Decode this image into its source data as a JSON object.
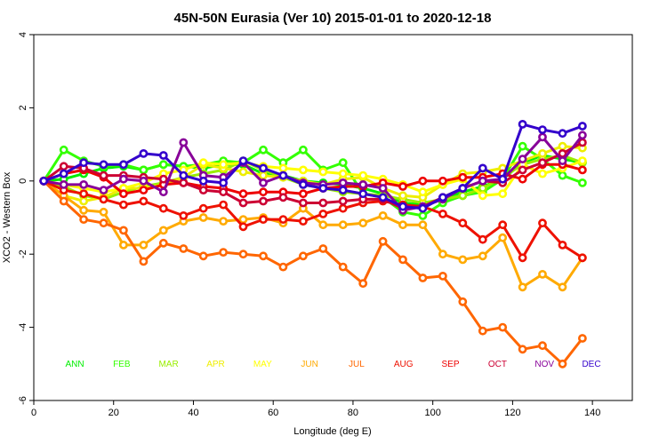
{
  "chart_data": {
    "type": "line",
    "title": "45N-50N Eurasia (Ver 10)   2015-01-01 to 2020-12-18",
    "xlabel": "Longitude (deg E)",
    "ylabel": "XCO2 - Western Box",
    "xlim": [
      0,
      150
    ],
    "ylim": [
      -6,
      4
    ],
    "xticks": [
      0,
      20,
      40,
      60,
      80,
      100,
      120,
      140
    ],
    "yticks": [
      -6,
      -4,
      -2,
      0,
      2,
      4
    ],
    "x": [
      2.5,
      7.5,
      12.5,
      17.5,
      22.5,
      27.5,
      32.5,
      37.5,
      42.5,
      47.5,
      52.5,
      57.5,
      62.5,
      67.5,
      72.5,
      77.5,
      82.5,
      87.5,
      92.5,
      97.5,
      102.5,
      107.5,
      112.5,
      117.5,
      122.5,
      127.5,
      132.5,
      137.5
    ],
    "series": [
      {
        "name": "ANN",
        "color": "#00ee00",
        "values": [
          0.0,
          0.05,
          0.2,
          0.35,
          0.4,
          0.3,
          0.45,
          0.4,
          0.35,
          0.45,
          0.45,
          0.2,
          0.15,
          0.0,
          -0.05,
          -0.1,
          -0.2,
          -0.35,
          -0.6,
          -0.65,
          -0.5,
          -0.3,
          -0.15,
          0.05,
          0.5,
          0.7,
          0.6,
          0.5
        ]
      },
      {
        "name": "FEB",
        "color": "#33ff00",
        "values": [
          0.0,
          0.85,
          0.55,
          0.4,
          0.45,
          0.3,
          0.45,
          0.4,
          0.45,
          0.55,
          0.5,
          0.85,
          0.5,
          0.85,
          0.3,
          0.5,
          -0.35,
          -0.45,
          -0.85,
          -0.95,
          -0.6,
          -0.4,
          -0.3,
          0.05,
          0.95,
          0.6,
          0.15,
          -0.05
        ]
      },
      {
        "name": "MAR",
        "color": "#99ee00",
        "values": [
          0.0,
          -0.15,
          -0.4,
          -0.5,
          -0.3,
          -0.15,
          -0.05,
          0.1,
          0.2,
          0.3,
          0.55,
          0.3,
          0.1,
          -0.1,
          -0.2,
          -0.3,
          -0.35,
          -0.4,
          -0.5,
          -0.6,
          -0.5,
          -0.4,
          -0.2,
          0.1,
          0.45,
          0.6,
          0.7,
          0.5
        ]
      },
      {
        "name": "APR",
        "color": "#eeee00",
        "values": [
          0.0,
          -0.4,
          -0.55,
          -0.45,
          -0.2,
          -0.2,
          -0.1,
          0.1,
          0.45,
          0.35,
          0.25,
          0.15,
          0.1,
          0.0,
          -0.1,
          0.05,
          0.1,
          -0.2,
          -0.4,
          -0.45,
          -0.1,
          0.2,
          0.25,
          0.35,
          0.55,
          0.75,
          0.95,
          0.9
        ]
      },
      {
        "name": "MAY",
        "color": "#ffff00",
        "values": [
          0.0,
          -0.1,
          -0.2,
          -0.3,
          -0.2,
          -0.05,
          0.2,
          0.3,
          0.5,
          0.45,
          0.5,
          0.4,
          0.35,
          0.3,
          0.25,
          0.2,
          0.15,
          0.05,
          -0.1,
          -0.3,
          -0.1,
          0.05,
          -0.4,
          -0.35,
          0.45,
          0.2,
          0.35,
          0.55
        ]
      },
      {
        "name": "JUN",
        "color": "#ffaa00",
        "values": [
          0.0,
          -0.4,
          -0.8,
          -0.85,
          -1.75,
          -1.75,
          -1.35,
          -1.1,
          -1.0,
          -1.1,
          -1.05,
          -1.0,
          -1.15,
          -0.75,
          -1.2,
          -1.2,
          -1.15,
          -0.95,
          -1.2,
          -1.2,
          -2.0,
          -2.15,
          -2.05,
          -1.55,
          -2.9,
          -2.55,
          -2.9,
          -2.1
        ]
      },
      {
        "name": "JUL",
        "color": "#ff6600",
        "values": [
          0.0,
          -0.55,
          -1.05,
          -1.15,
          -1.35,
          -2.2,
          -1.7,
          -1.85,
          -2.05,
          -1.95,
          -2.0,
          -2.05,
          -2.35,
          -2.05,
          -1.85,
          -2.35,
          -2.8,
          -1.65,
          -2.15,
          -2.65,
          -2.6,
          -3.3,
          -4.1,
          -4.0,
          -4.6,
          -4.5,
          -5.0,
          -4.3
        ]
      },
      {
        "name": "AUG",
        "color": "#ee1100",
        "values": [
          0.0,
          -0.25,
          -0.35,
          -0.5,
          -0.65,
          -0.55,
          -0.75,
          -0.95,
          -0.75,
          -0.65,
          -1.25,
          -1.05,
          -1.05,
          -1.1,
          -0.9,
          -0.75,
          -0.6,
          -0.55,
          -0.65,
          -0.7,
          -0.9,
          -1.15,
          -1.6,
          -1.2,
          -2.1,
          -1.15,
          -1.75,
          -2.1
        ]
      },
      {
        "name": "SEP",
        "color": "#ee0000",
        "values": [
          0.0,
          0.2,
          0.3,
          0.1,
          -0.35,
          -0.25,
          -0.1,
          -0.05,
          -0.15,
          -0.2,
          -0.35,
          -0.3,
          -0.3,
          -0.35,
          -0.2,
          -0.15,
          -0.15,
          -0.05,
          -0.15,
          0.0,
          0.0,
          0.1,
          0.1,
          0.2,
          0.05,
          0.45,
          0.45,
          0.3
        ]
      },
      {
        "name": "OCT",
        "color": "#cc0033",
        "values": [
          0.0,
          0.4,
          0.35,
          0.15,
          0.15,
          0.1,
          0.05,
          -0.05,
          -0.25,
          -0.3,
          -0.6,
          -0.55,
          -0.45,
          -0.6,
          -0.6,
          -0.55,
          -0.5,
          -0.5,
          -0.75,
          -0.7,
          -0.45,
          -0.2,
          0.0,
          -0.05,
          0.3,
          0.5,
          0.75,
          1.05
        ]
      },
      {
        "name": "NOV",
        "color": "#880099",
        "values": [
          0.0,
          -0.1,
          -0.1,
          -0.25,
          0.05,
          0.0,
          -0.3,
          1.05,
          0.15,
          0.1,
          0.5,
          -0.05,
          0.15,
          -0.05,
          -0.1,
          -0.05,
          -0.1,
          -0.2,
          -0.8,
          -0.7,
          -0.5,
          -0.2,
          0.0,
          0.05,
          0.6,
          1.2,
          0.55,
          1.25
        ]
      },
      {
        "name": "DEC",
        "color": "#3300cc",
        "values": [
          0.0,
          0.2,
          0.5,
          0.45,
          0.45,
          0.75,
          0.7,
          0.15,
          0.0,
          -0.05,
          0.55,
          0.35,
          0.15,
          -0.1,
          -0.2,
          -0.25,
          -0.35,
          -0.45,
          -0.7,
          -0.75,
          -0.45,
          -0.2,
          0.35,
          0.05,
          1.55,
          1.4,
          1.3,
          1.5
        ]
      }
    ]
  }
}
